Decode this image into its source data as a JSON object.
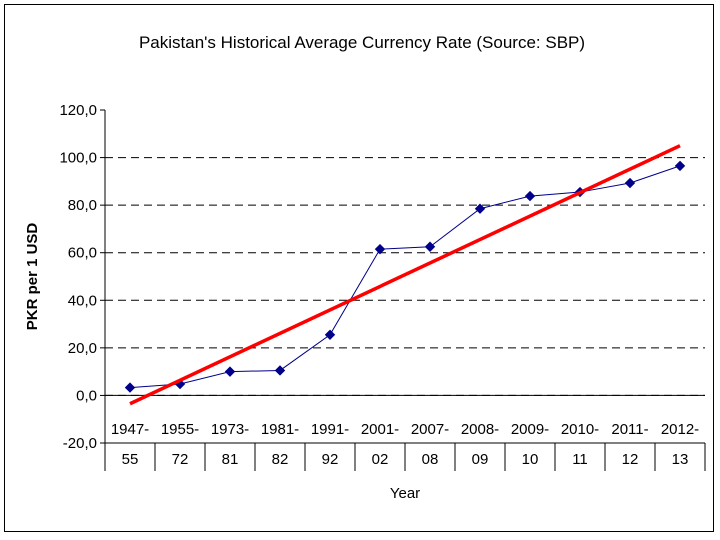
{
  "chart_data": {
    "type": "line",
    "title": "Pakistan's Historical Average Currency Rate (Source: SBP)",
    "xlabel": "Year",
    "ylabel": "PKR per 1 USD",
    "categories": [
      [
        "1947-",
        "55"
      ],
      [
        "1955-",
        "72"
      ],
      [
        "1973-",
        "81"
      ],
      [
        "1981-",
        "82"
      ],
      [
        "1991-",
        "92"
      ],
      [
        "2001-",
        "02"
      ],
      [
        "2007-",
        "08"
      ],
      [
        "2008-",
        "09"
      ],
      [
        "2009-",
        "10"
      ],
      [
        "2010-",
        "11"
      ],
      [
        "2011-",
        "12"
      ],
      [
        "2012-",
        "13"
      ]
    ],
    "series": [
      {
        "values": [
          3.3,
          4.8,
          10.0,
          10.5,
          25.5,
          61.5,
          62.5,
          78.5,
          83.8,
          85.5,
          89.3,
          96.5
        ],
        "color": "#00008b",
        "marker": "diamond"
      }
    ],
    "trendline": {
      "start": -3.5,
      "end": 105.0,
      "color": "#ff0000"
    },
    "ylim": [
      -20,
      120
    ],
    "yticks": [
      "-20,0",
      "0,0",
      "20,0",
      "40,0",
      "60,0",
      "80,0",
      "100,0",
      "120,0"
    ],
    "ytick_values": [
      -20,
      0,
      20,
      40,
      60,
      80,
      100,
      120
    ],
    "grid": true
  }
}
